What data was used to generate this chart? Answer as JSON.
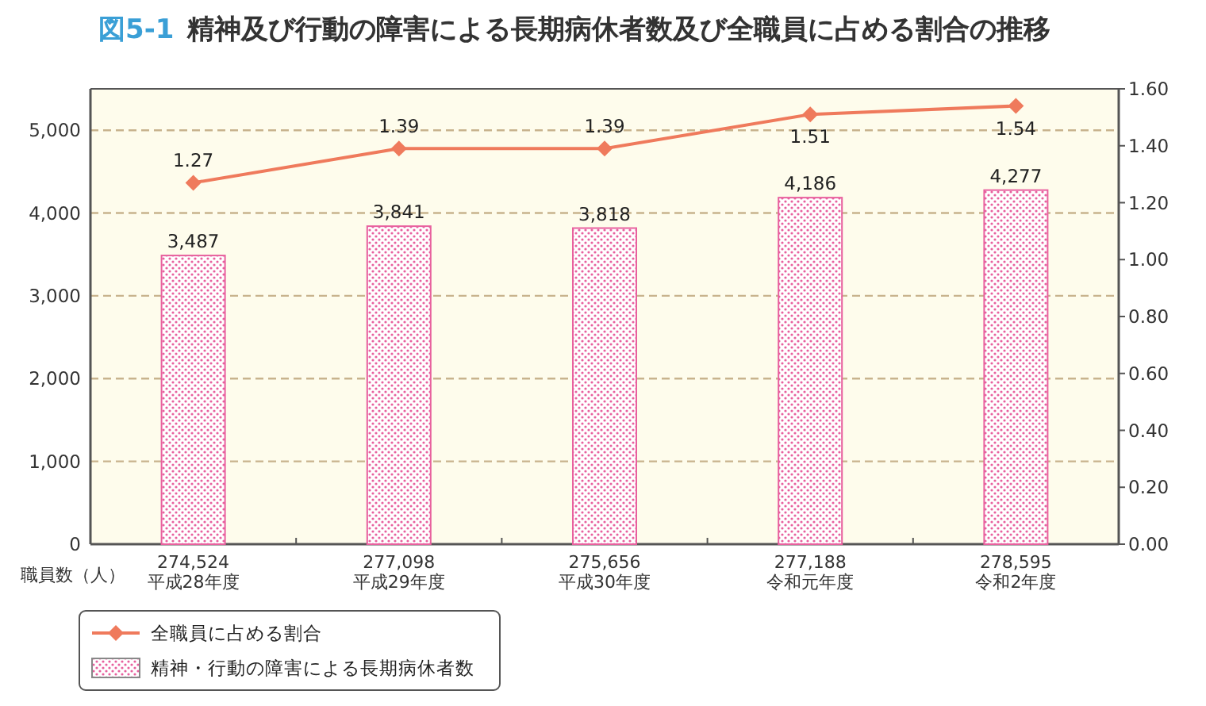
{
  "chart_data": {
    "type": "bar",
    "title": "精神及び行動の障害による長期病休者数及び全職員に占める割合の推移",
    "annotations": [
      "図5-1"
    ],
    "xlabel": "職員数（人）",
    "categories": [
      "274,524\n平成28年度",
      "277,098\n平成29年度",
      "275,656\n平成30年度",
      "277,188\n令和元年度",
      "278,595\n令和2年度"
    ],
    "series": [
      {
        "name": "精神・行動の障害による長期病休者数",
        "color": "#e8609e",
        "values": [
          3487,
          3841,
          3818,
          4186,
          4277
        ],
        "value_labels": [
          "3,487",
          "3,841",
          "3,818",
          "4,186",
          "4,277"
        ]
      },
      {
        "name": "全職員に占める割合",
        "type": "line",
        "axis": "y2",
        "color": "#ef7a5c",
        "marker": "diamond",
        "values": [
          1.27,
          1.39,
          1.39,
          1.51,
          1.54
        ],
        "value_labels": [
          "1.27",
          "1.39",
          "1.39",
          "1.51",
          "1.54"
        ]
      }
    ],
    "ylim": [
      0,
      5500
    ],
    "yticks": [
      {
        "value": 0,
        "label": "0"
      },
      {
        "value": 1000,
        "label": "1,000"
      },
      {
        "value": 2000,
        "label": "2,000"
      },
      {
        "value": 3000,
        "label": "3,000"
      },
      {
        "value": 4000,
        "label": "4,000"
      },
      {
        "value": 5000,
        "label": "5,000"
      }
    ],
    "y2lim": [
      0,
      1.6
    ],
    "y2ticks": [
      {
        "value": 0,
        "label": "0.00"
      },
      {
        "value": 0.2,
        "label": "0.20"
      },
      {
        "value": 0.4,
        "label": "0.40"
      },
      {
        "value": 0.6,
        "label": "0.60"
      },
      {
        "value": 0.8,
        "label": "0.80"
      },
      {
        "value": 1.0,
        "label": "1.00"
      },
      {
        "value": 1.2,
        "label": "1.20"
      },
      {
        "value": 1.4,
        "label": "1.40"
      },
      {
        "value": 1.6,
        "label": "1.60"
      }
    ],
    "grid": "y",
    "legend": "bottom left"
  }
}
